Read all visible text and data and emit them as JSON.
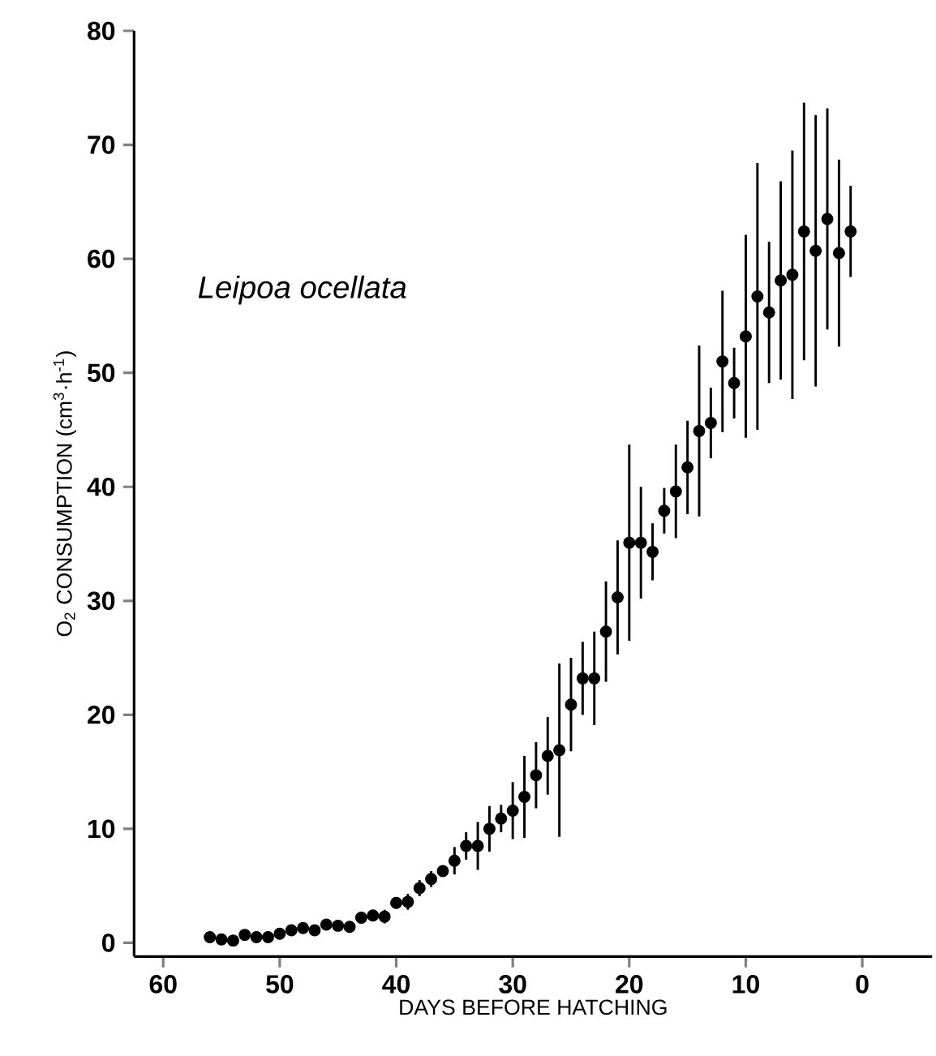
{
  "chart_data": {
    "type": "scatter",
    "xlabel": "DAYS BEFORE HATCHING",
    "ylabel": "O$_{2}$ CONSUMPTION (cm$^{3}$·h$^{-1}$)",
    "annotations": [
      "*Leipoa ocellata*"
    ],
    "x": [
      56,
      55,
      54,
      53,
      52,
      51,
      50,
      49,
      48,
      47,
      46,
      45,
      44,
      43,
      42,
      41,
      40,
      39,
      38,
      37,
      36,
      35,
      34,
      33,
      32,
      31,
      30,
      29,
      28,
      27,
      26,
      25,
      24,
      23,
      22,
      21,
      20,
      19,
      18,
      17,
      16,
      15,
      14,
      13,
      12,
      11,
      10,
      9,
      8,
      7,
      6,
      5,
      4,
      3,
      2,
      1
    ],
    "series": [
      {
        "color": "#000000",
        "values": [
          0.5,
          0.3,
          0.2,
          0.7,
          0.5,
          0.5,
          0.8,
          1.1,
          1.3,
          1.1,
          1.6,
          1.5,
          1.4,
          2.2,
          2.4,
          2.3,
          3.5,
          3.6,
          4.8,
          5.6,
          6.3,
          7.2,
          8.5,
          8.5,
          10.0,
          10.9,
          11.6,
          12.8,
          14.7,
          16.4,
          16.9,
          20.9,
          23.2,
          23.2,
          27.3,
          30.3,
          35.1,
          35.1,
          34.3,
          37.9,
          39.6,
          41.7,
          44.9,
          45.6,
          51.0,
          49.1,
          53.2,
          56.7,
          55.3,
          58.1,
          58.6,
          62.4,
          60.7,
          63.5,
          60.5,
          62.4
        ],
        "errors": [
          null,
          null,
          null,
          null,
          null,
          null,
          null,
          null,
          null,
          null,
          null,
          null,
          null,
          0.5,
          null,
          0.6,
          0.5,
          0.7,
          0.7,
          0.7,
          null,
          1.2,
          1.2,
          2.1,
          2.0,
          1.2,
          2.5,
          3.6,
          2.9,
          3.4,
          7.6,
          4.1,
          3.2,
          4.1,
          4.4,
          5.0,
          8.6,
          4.9,
          2.5,
          2.0,
          4.1,
          4.1,
          7.5,
          3.1,
          6.2,
          3.1,
          8.9,
          11.7,
          6.2,
          8.7,
          10.9,
          11.3,
          11.9,
          9.7,
          8.2,
          4.0
        ]
      }
    ],
    "xlim": [
      62.5,
      -6
    ],
    "xticks": [
      60,
      50,
      40,
      30,
      20,
      10,
      0
    ],
    "ylim": [
      -1.2,
      80
    ],
    "yticks": [
      0,
      10,
      20,
      30,
      40,
      50,
      60,
      70,
      80
    ],
    "marker": "circle"
  }
}
